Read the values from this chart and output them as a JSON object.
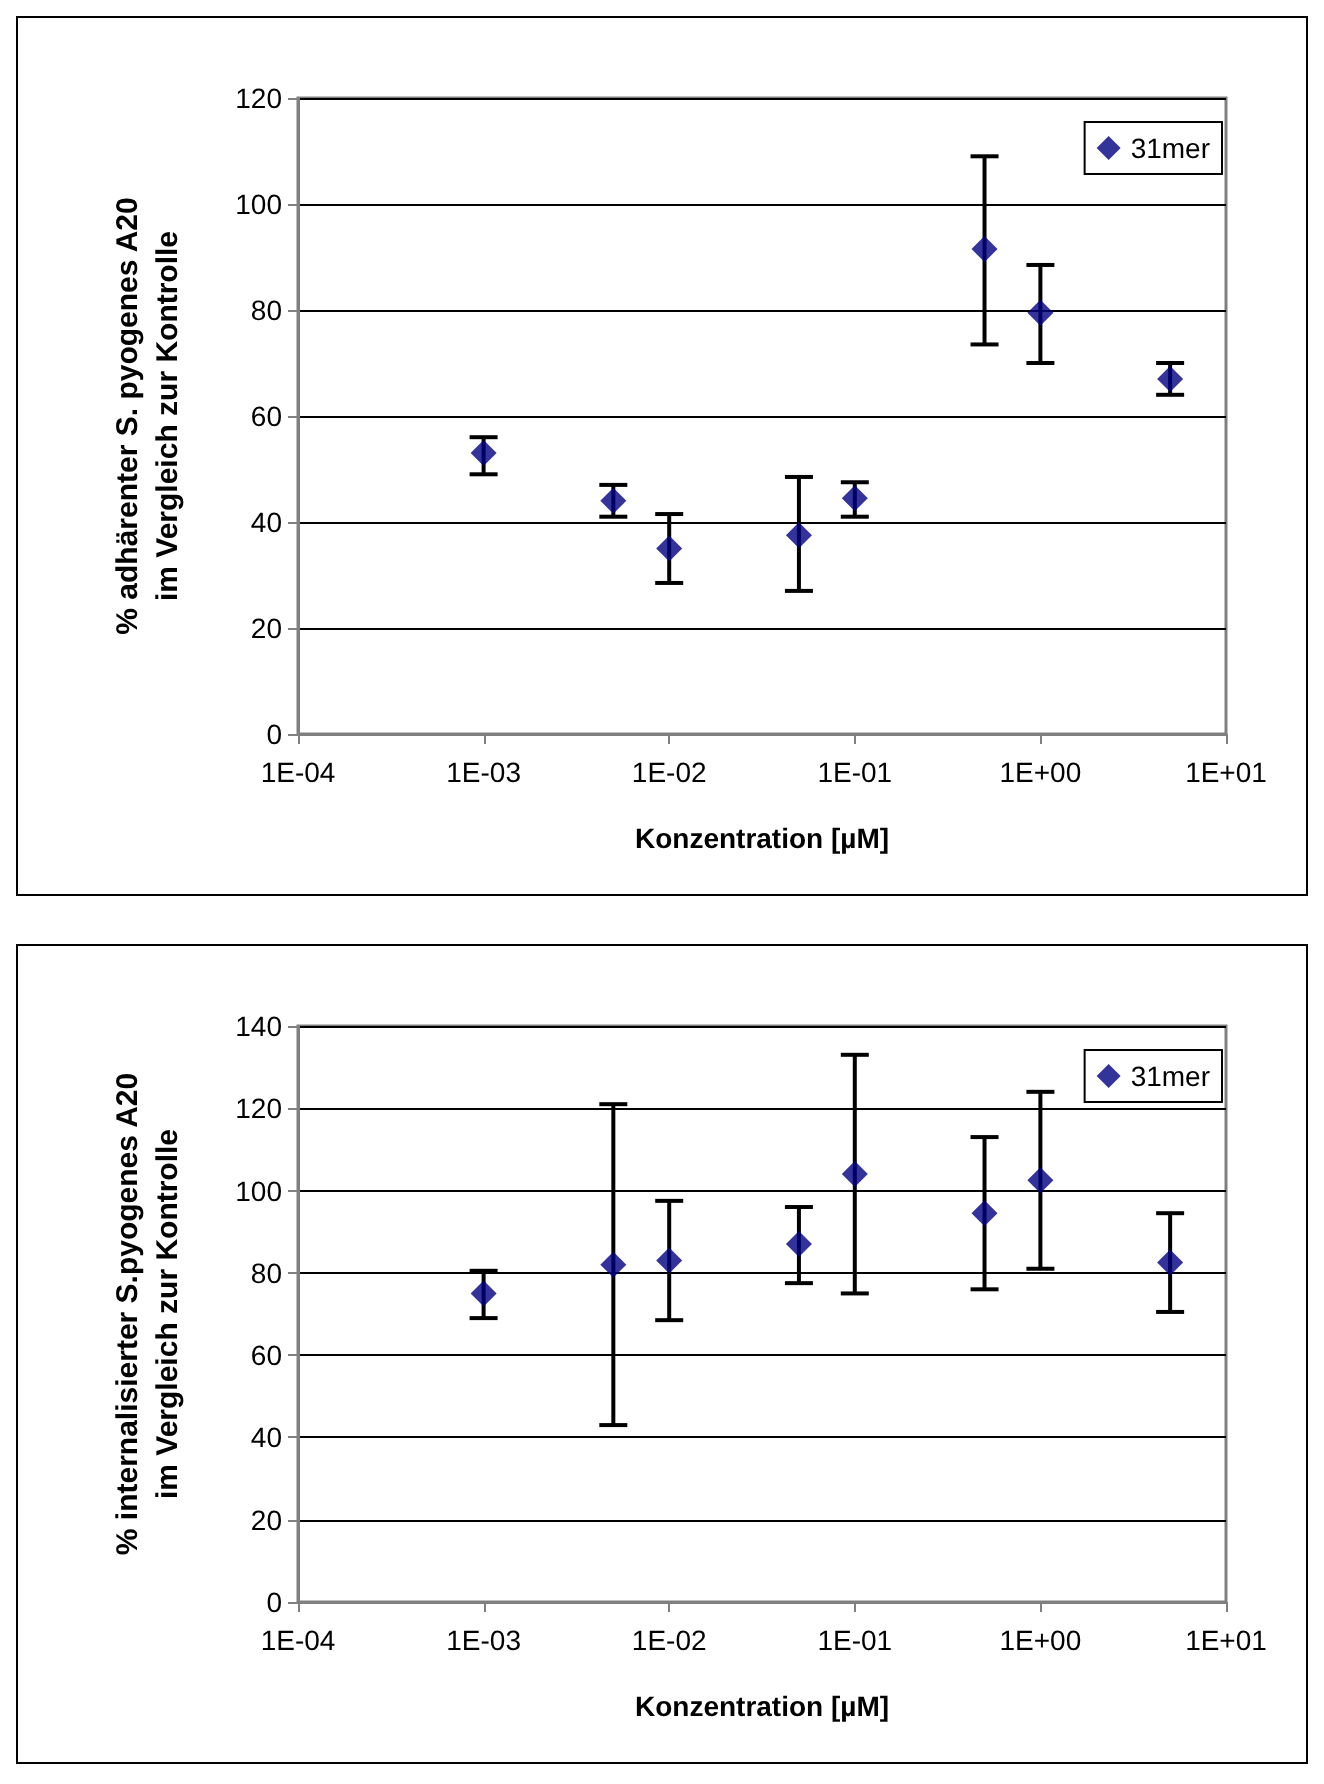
{
  "chart_data": [
    {
      "type": "scatter",
      "xlabel": "Konzentration [µM]",
      "ylabel": "% adhärenter S. pyogenes A20\nim Vergleich zur Kontrolle",
      "log": "x",
      "x": [
        0.001,
        0.005,
        0.01,
        0.05,
        0.1,
        0.5,
        1,
        5
      ],
      "series": [
        {
          "name": "31mer",
          "color": "#000080",
          "values": [
            53,
            44,
            35,
            37.5,
            44.5,
            91.5,
            79.5,
            67
          ],
          "errors": [
            [
              49,
              56
            ],
            [
              41,
              47
            ],
            [
              28.5,
              41.5
            ],
            [
              27,
              48.5
            ],
            [
              41,
              47.5
            ],
            [
              73.5,
              109
            ],
            [
              70,
              88.5
            ],
            [
              64,
              70
            ]
          ]
        }
      ],
      "xlim": [
        0.0001,
        10
      ],
      "xticks": [
        {
          "value": 0.0001,
          "label": "1E-04"
        },
        {
          "value": 0.001,
          "label": "1E-03"
        },
        {
          "value": 0.01,
          "label": "1E-02"
        },
        {
          "value": 0.1,
          "label": "1E-01"
        },
        {
          "value": 1,
          "label": "1E+00"
        },
        {
          "value": 10,
          "label": "1E+01"
        }
      ],
      "ylim": [
        0,
        120
      ],
      "yticks": [
        0,
        20,
        40,
        60,
        80,
        100,
        120
      ],
      "grid": "y",
      "legend": "top right",
      "marker": "diamond"
    },
    {
      "type": "scatter",
      "xlabel": "Konzentration [µM]",
      "ylabel": "% internalisierter S.pyogenes A20\nim Vergleich zur Kontrolle",
      "log": "x",
      "x": [
        0.001,
        0.005,
        0.01,
        0.05,
        0.1,
        0.5,
        1,
        5
      ],
      "series": [
        {
          "name": "31mer",
          "color": "#000080",
          "values": [
            75,
            82,
            83,
            87,
            104,
            94.5,
            102.5,
            82.5
          ],
          "errors": [
            [
              69,
              80.5
            ],
            [
              43,
              121
            ],
            [
              68.5,
              97.5
            ],
            [
              77.5,
              96
            ],
            [
              75,
              133
            ],
            [
              76,
              113
            ],
            [
              81,
              124
            ],
            [
              70.5,
              94.5
            ]
          ]
        }
      ],
      "xlim": [
        0.0001,
        10
      ],
      "xticks": [
        {
          "value": 0.0001,
          "label": "1E-04"
        },
        {
          "value": 0.001,
          "label": "1E-03"
        },
        {
          "value": 0.01,
          "label": "1E-02"
        },
        {
          "value": 0.1,
          "label": "1E-01"
        },
        {
          "value": 1,
          "label": "1E+00"
        },
        {
          "value": 10,
          "label": "1E+01"
        }
      ],
      "ylim": [
        0,
        140
      ],
      "yticks": [
        0,
        20,
        40,
        60,
        80,
        100,
        120,
        140
      ],
      "grid": "y",
      "legend": "top right",
      "marker": "diamond"
    }
  ]
}
